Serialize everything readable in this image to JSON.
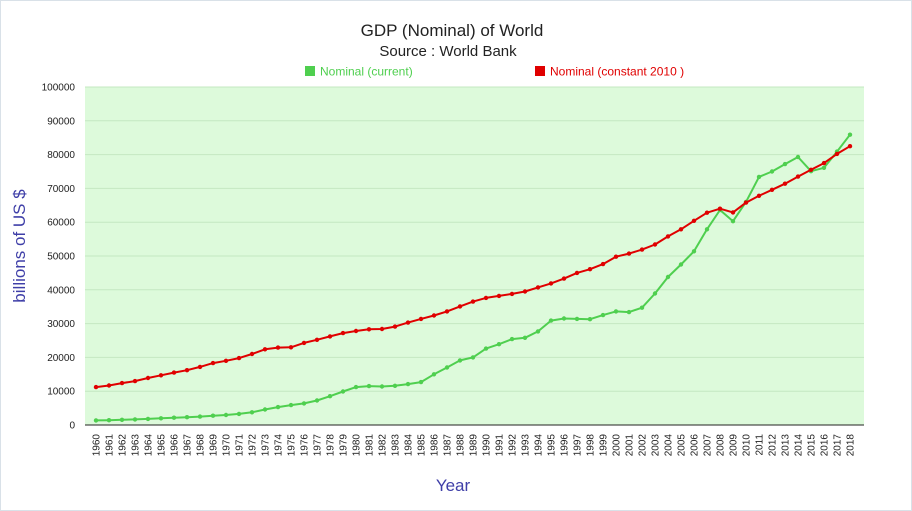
{
  "chart_data": {
    "type": "line",
    "title": "GDP (Nominal) of World",
    "subtitle": "Source : World Bank",
    "xlabel": "Year",
    "ylabel": "billions of US $",
    "ylim": [
      0,
      100000
    ],
    "yticks": [
      "0",
      "10000",
      "20000",
      "30000",
      "40000",
      "50000",
      "60000",
      "70000",
      "80000",
      "90000",
      "100000"
    ],
    "grid": true,
    "legend_position": "top",
    "colors": {
      "plot_bg": "#ddfadb",
      "text": "#222222",
      "axis_title": "#3f3fa8"
    },
    "x": [
      "1960",
      "1961",
      "1962",
      "1963",
      "1964",
      "1965",
      "1966",
      "1967",
      "1968",
      "1969",
      "1970",
      "1971",
      "1972",
      "1973",
      "1974",
      "1975",
      "1976",
      "1977",
      "1978",
      "1979",
      "1980",
      "1981",
      "1982",
      "1983",
      "1984",
      "1985",
      "1986",
      "1987",
      "1988",
      "1989",
      "1990",
      "1991",
      "1992",
      "1993",
      "1994",
      "1995",
      "1996",
      "1997",
      "1998",
      "1999",
      "2000",
      "2001",
      "2002",
      "2003",
      "2004",
      "2005",
      "2006",
      "2007",
      "2008",
      "2009",
      "2010",
      "2011",
      "2012",
      "2013",
      "2014",
      "2015",
      "2016",
      "2017",
      "2018"
    ],
    "series": [
      {
        "name": "Nominal (current)",
        "color": "#4fcf4f",
        "values": [
          1370,
          1420,
          1530,
          1650,
          1810,
          1980,
          2150,
          2300,
          2480,
          2740,
          2960,
          3270,
          3770,
          4590,
          5310,
          5900,
          6380,
          7260,
          8530,
          9920,
          11200,
          11500,
          11400,
          11600,
          12100,
          12700,
          15000,
          17000,
          19100,
          20000,
          22600,
          23900,
          25400,
          25800,
          27700,
          30900,
          31500,
          31400,
          31300,
          32500,
          33600,
          33400,
          34700,
          38900,
          43800,
          47500,
          51400,
          57900,
          63600,
          60300,
          66000,
          73400,
          75000,
          77200,
          79300,
          75100,
          76100,
          80900,
          85900
        ]
      },
      {
        "name": "Nominal (constant 2010 )",
        "color": "#e00000",
        "values": [
          11200,
          11700,
          12400,
          13000,
          13900,
          14700,
          15500,
          16200,
          17200,
          18300,
          19000,
          19800,
          21000,
          22400,
          22900,
          23000,
          24300,
          25200,
          26200,
          27200,
          27800,
          28300,
          28400,
          29100,
          30300,
          31400,
          32400,
          33600,
          35100,
          36500,
          37600,
          38200,
          38800,
          39500,
          40700,
          41900,
          43300,
          45000,
          46100,
          47600,
          49800,
          50700,
          51900,
          53400,
          55800,
          57900,
          60400,
          62800,
          64000,
          62900,
          65800,
          67800,
          69600,
          71400,
          73500,
          75500,
          77500,
          80200,
          82500
        ]
      }
    ]
  }
}
